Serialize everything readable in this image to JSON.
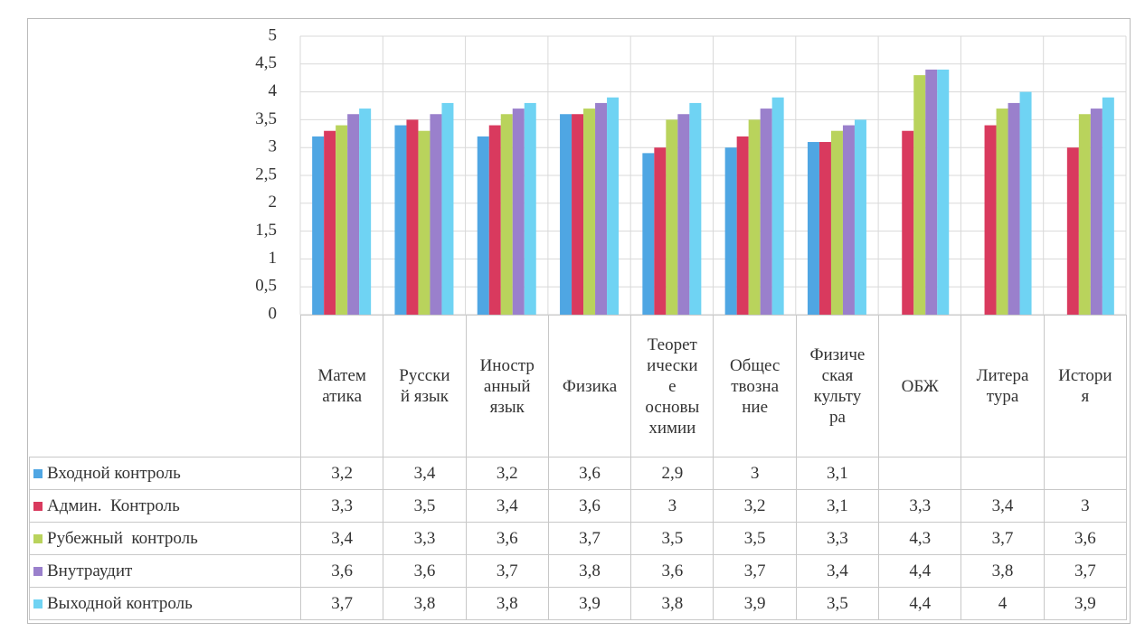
{
  "chart_data": {
    "type": "bar",
    "categories": [
      "Матем\nатика",
      "Русски\nй язык",
      "Иностр\nанный\nязык",
      "Физика",
      "Теорет\nически\nе\nосновы\nхимии",
      "Общес\nтвозна\nние",
      "Физиче\nская\nкульту\nра",
      "ОБЖ",
      "Литера\nтура",
      "Истори\nя"
    ],
    "series": [
      {
        "name": "Входной контроль",
        "color": "#4fa6e3",
        "values": [
          3.2,
          3.4,
          3.2,
          3.6,
          2.9,
          3,
          3.1,
          null,
          null,
          null
        ],
        "value_labels": [
          "3,2",
          "3,4",
          "3,2",
          "3,6",
          "2,9",
          "3",
          "3,1",
          null,
          null,
          null
        ]
      },
      {
        "name": "Админ.  Контроль",
        "color": "#d93a5e",
        "values": [
          3.3,
          3.5,
          3.4,
          3.6,
          3,
          3.2,
          3.1,
          3.3,
          3.4,
          3
        ],
        "value_labels": [
          "3,3",
          "3,5",
          "3,4",
          "3,6",
          "3",
          "3,2",
          "3,1",
          "3,3",
          "3,4",
          "3"
        ]
      },
      {
        "name": "Рубежный  контроль",
        "color": "#b9d35c",
        "values": [
          3.4,
          3.3,
          3.6,
          3.7,
          3.5,
          3.5,
          3.3,
          4.3,
          3.7,
          3.6
        ],
        "value_labels": [
          "3,4",
          "3,3",
          "3,6",
          "3,7",
          "3,5",
          "3,5",
          "3,3",
          "4,3",
          "3,7",
          "3,6"
        ]
      },
      {
        "name": "Внутраудит",
        "color": "#9a80cc",
        "values": [
          3.6,
          3.6,
          3.7,
          3.8,
          3.6,
          3.7,
          3.4,
          4.4,
          3.8,
          3.7
        ],
        "value_labels": [
          "3,6",
          "3,6",
          "3,7",
          "3,8",
          "3,6",
          "3,7",
          "3,4",
          "4,4",
          "3,8",
          "3,7"
        ]
      },
      {
        "name": "Выходной контроль",
        "color": "#6fd3f3",
        "values": [
          3.7,
          3.8,
          3.8,
          3.9,
          3.8,
          3.9,
          3.5,
          4.4,
          4,
          3.9
        ],
        "value_labels": [
          "3,7",
          "3,8",
          "3,8",
          "3,9",
          "3,8",
          "3,9",
          "3,5",
          "4,4",
          "4",
          "3,9"
        ]
      }
    ],
    "ylim": [
      0,
      5
    ],
    "yticks": [
      0,
      {
        "value": 0.5,
        "label": "0,5"
      },
      1,
      {
        "value": 1.5,
        "label": "1,5"
      },
      2,
      {
        "value": 2.5,
        "label": "2,5"
      },
      3,
      {
        "value": 3.5,
        "label": "3,5"
      },
      4,
      {
        "value": 4.5,
        "label": "4,5"
      },
      5
    ],
    "grid": true
  }
}
